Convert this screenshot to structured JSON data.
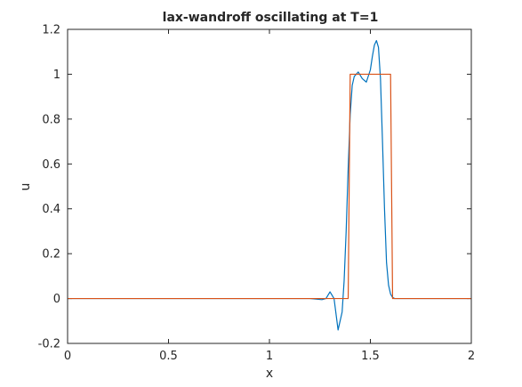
{
  "chart_data": {
    "type": "line",
    "title": "lax-wandroff oscillating at T=1",
    "xlabel": "x",
    "ylabel": "u",
    "xlim": [
      0,
      2
    ],
    "ylim": [
      -0.2,
      1.2
    ],
    "xticks": [
      0,
      0.5,
      1,
      1.5,
      2
    ],
    "xtick_labels": [
      "0",
      "0.5",
      "1",
      "1.5",
      "2"
    ],
    "yticks": [
      -0.2,
      0,
      0.2,
      0.4,
      0.6,
      0.8,
      1,
      1.2
    ],
    "ytick_labels": [
      "-0.2",
      "0",
      "0.2",
      "0.4",
      "0.6",
      "0.8",
      "1",
      "1.2"
    ],
    "grid": false,
    "series": [
      {
        "color": "#0072BD",
        "x": [
          0,
          1.2,
          1.26,
          1.28,
          1.3,
          1.32,
          1.34,
          1.36,
          1.37,
          1.38,
          1.39,
          1.4,
          1.41,
          1.42,
          1.44,
          1.46,
          1.48,
          1.5,
          1.51,
          1.52,
          1.53,
          1.54,
          1.55,
          1.56,
          1.57,
          1.58,
          1.59,
          1.6,
          1.61,
          1.62,
          1.63,
          1.64,
          2
        ],
        "y": [
          0,
          0,
          -0.005,
          0.0,
          0.03,
          0.0,
          -0.14,
          -0.06,
          0.08,
          0.3,
          0.58,
          0.82,
          0.95,
          0.99,
          1.01,
          0.98,
          0.965,
          1.02,
          1.08,
          1.13,
          1.15,
          1.12,
          0.98,
          0.7,
          0.4,
          0.16,
          0.06,
          0.02,
          0.005,
          0,
          0,
          0,
          0
        ]
      },
      {
        "color": "#D95319",
        "x": [
          0,
          1.39,
          1.4,
          1.6,
          1.61,
          2
        ],
        "y": [
          0,
          0,
          1,
          1,
          0,
          0
        ]
      }
    ]
  }
}
